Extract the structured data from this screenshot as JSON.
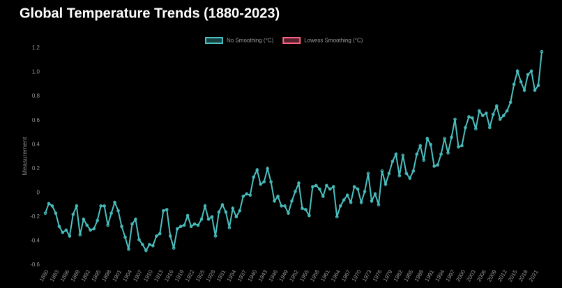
{
  "chart_data": {
    "type": "line",
    "title": "Global Temperature Trends (1880-2023)",
    "y_label": "Measurement",
    "categories": [
      "1880",
      null,
      null,
      "1883",
      null,
      null,
      "1886",
      null,
      null,
      "1889",
      null,
      null,
      "1892",
      null,
      null,
      "1895",
      null,
      null,
      "1898",
      null,
      null,
      "1901",
      null,
      null,
      "1904",
      null,
      null,
      "1907",
      null,
      null,
      "1910",
      null,
      null,
      "1913",
      null,
      null,
      "1916",
      null,
      null,
      "1919",
      null,
      null,
      "1922",
      null,
      null,
      "1925",
      null,
      null,
      "1928",
      null,
      null,
      "1931",
      null,
      null,
      "1934",
      null,
      null,
      "1937",
      null,
      null,
      "1940",
      null,
      null,
      "1943",
      null,
      null,
      "1946",
      null,
      null,
      "1949",
      null,
      null,
      "1952",
      null,
      null,
      "1955",
      null,
      null,
      "1958",
      null,
      null,
      "1961",
      null,
      null,
      "1964",
      null,
      null,
      "1967",
      null,
      null,
      "1970",
      null,
      null,
      "1973",
      null,
      null,
      "1976",
      null,
      null,
      "1979",
      null,
      null,
      "1982",
      null,
      null,
      "1985",
      null,
      null,
      "1988",
      null,
      null,
      "1991",
      null,
      null,
      "1994",
      null,
      null,
      "1997",
      null,
      null,
      "2000",
      null,
      null,
      "2003",
      null,
      null,
      "2006",
      null,
      null,
      "2009",
      null,
      null,
      "2012",
      null,
      null,
      "2015",
      null,
      null,
      "2018",
      null,
      null,
      "2021",
      null,
      null
    ],
    "series": [
      {
        "name": "No Smoothing (°C)",
        "color": "#4bc0c0",
        "values": [
          -0.17,
          -0.09,
          -0.11,
          -0.17,
          -0.28,
          -0.33,
          -0.31,
          -0.36,
          -0.18,
          -0.11,
          -0.35,
          -0.22,
          -0.27,
          -0.31,
          -0.3,
          -0.23,
          -0.11,
          -0.11,
          -0.27,
          -0.17,
          -0.08,
          -0.15,
          -0.28,
          -0.37,
          -0.47,
          -0.26,
          -0.22,
          -0.39,
          -0.43,
          -0.48,
          -0.43,
          -0.44,
          -0.36,
          -0.34,
          -0.15,
          -0.14,
          -0.36,
          -0.46,
          -0.3,
          -0.28,
          -0.27,
          -0.19,
          -0.28,
          -0.26,
          -0.27,
          -0.22,
          -0.11,
          -0.22,
          -0.2,
          -0.36,
          -0.16,
          -0.1,
          -0.16,
          -0.29,
          -0.13,
          -0.2,
          -0.15,
          -0.03,
          -0.01,
          -0.02,
          0.13,
          0.19,
          0.07,
          0.09,
          0.2,
          0.09,
          -0.07,
          -0.03,
          -0.11,
          -0.11,
          -0.17,
          -0.07,
          0.01,
          0.08,
          -0.13,
          -0.14,
          -0.19,
          0.05,
          0.06,
          0.03,
          -0.03,
          0.06,
          0.03,
          0.05,
          -0.2,
          -0.11,
          -0.06,
          -0.02,
          -0.08,
          0.05,
          0.03,
          -0.08,
          0.01,
          0.16,
          -0.07,
          -0.01,
          -0.1,
          0.18,
          0.07,
          0.16,
          0.26,
          0.32,
          0.14,
          0.31,
          0.16,
          0.12,
          0.18,
          0.32,
          0.39,
          0.27,
          0.45,
          0.4,
          0.22,
          0.23,
          0.32,
          0.45,
          0.33,
          0.46,
          0.61,
          0.38,
          0.39,
          0.54,
          0.63,
          0.62,
          0.53,
          0.68,
          0.64,
          0.66,
          0.54,
          0.65,
          0.72,
          0.61,
          0.64,
          0.68,
          0.75,
          0.9,
          1.01,
          0.92,
          0.85,
          0.98,
          1.01,
          0.85,
          0.89,
          1.17
        ]
      },
      {
        "name": "Lowess Smoothing (°C)",
        "color": "#ff6384"
      }
    ],
    "ylim": [
      -0.6,
      1.2
    ],
    "yticks": [
      -0.6,
      -0.4,
      -0.2,
      0,
      0.2,
      0.4,
      0.6,
      0.8,
      {
        "value": 1,
        "label": "1.0"
      },
      1.2
    ],
    "grid": false,
    "legend": "top"
  }
}
